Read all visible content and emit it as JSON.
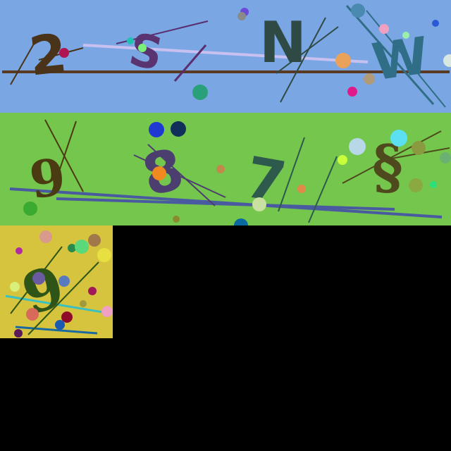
{
  "canvas": {
    "background": "#000000"
  },
  "panels": [
    {
      "name": "captcha-panel-top",
      "background": "#7aa7e3",
      "characters": [
        {
          "text": "2",
          "color": "#4a3419"
        },
        {
          "text": "S",
          "color": "#5a3470"
        },
        {
          "text": "N",
          "color": "#2f4a44"
        },
        {
          "text": "W",
          "color": "#2f6e86"
        }
      ]
    },
    {
      "name": "captcha-panel-middle",
      "background": "#74c74c",
      "characters": [
        {
          "text": "9",
          "color": "#4b3b12"
        },
        {
          "text": "8",
          "color": "#4d3e70"
        },
        {
          "text": "7",
          "color": "#2e5a4e"
        },
        {
          "text": "§",
          "color": "#4f4a1e"
        }
      ]
    },
    {
      "name": "captcha-panel-small",
      "background": "#d6c43e",
      "characters": [
        {
          "text": "9",
          "color": "#2f5417"
        }
      ]
    }
  ]
}
